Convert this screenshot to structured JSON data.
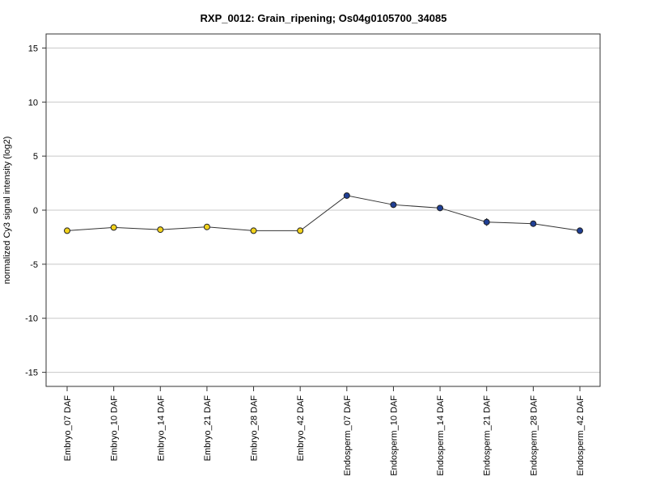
{
  "chart_data": {
    "type": "line",
    "title": "RXP_0012: Grain_ripening; Os04g0105700_34085",
    "xlabel": "",
    "ylabel": "normalized Cy3 signal intensity (log2)",
    "ylim": [
      -16.3,
      16.3
    ],
    "yticks": [
      -15,
      -10,
      -5,
      0,
      5,
      10,
      15
    ],
    "grid": "horizontal",
    "categories": [
      "Embryo_07 DAF",
      "Embryo_10 DAF",
      "Embryo_14 DAF",
      "Embryo_21 DAF",
      "Embryo_28 DAF",
      "Embryo_42 DAF",
      "Endosperm_07 DAF",
      "Endosperm_10 DAF",
      "Endosperm_14 DAF",
      "Endosperm_21 DAF",
      "Endosperm_28 DAF",
      "Endosperm_42 DAF"
    ],
    "series": [
      {
        "values": [
          -1.9,
          -1.6,
          -1.8,
          -1.55,
          -1.9,
          -1.9,
          1.35,
          0.5,
          0.2,
          -1.1,
          -1.25,
          -1.9
        ],
        "errors": [
          0.2,
          0.1,
          0.1,
          0.15,
          0.1,
          0.2,
          0.1,
          0.1,
          0.1,
          0.35,
          0.1,
          0.3
        ],
        "point_colors": [
          "#f2d21b",
          "#f2d21b",
          "#f2d21b",
          "#f2d21b",
          "#f2d21b",
          "#f2d21b",
          "#1f3f95",
          "#1f3f95",
          "#1f3f95",
          "#1f3f95",
          "#1f3f95",
          "#1f3f95"
        ],
        "line_color": "#333333"
      }
    ]
  }
}
